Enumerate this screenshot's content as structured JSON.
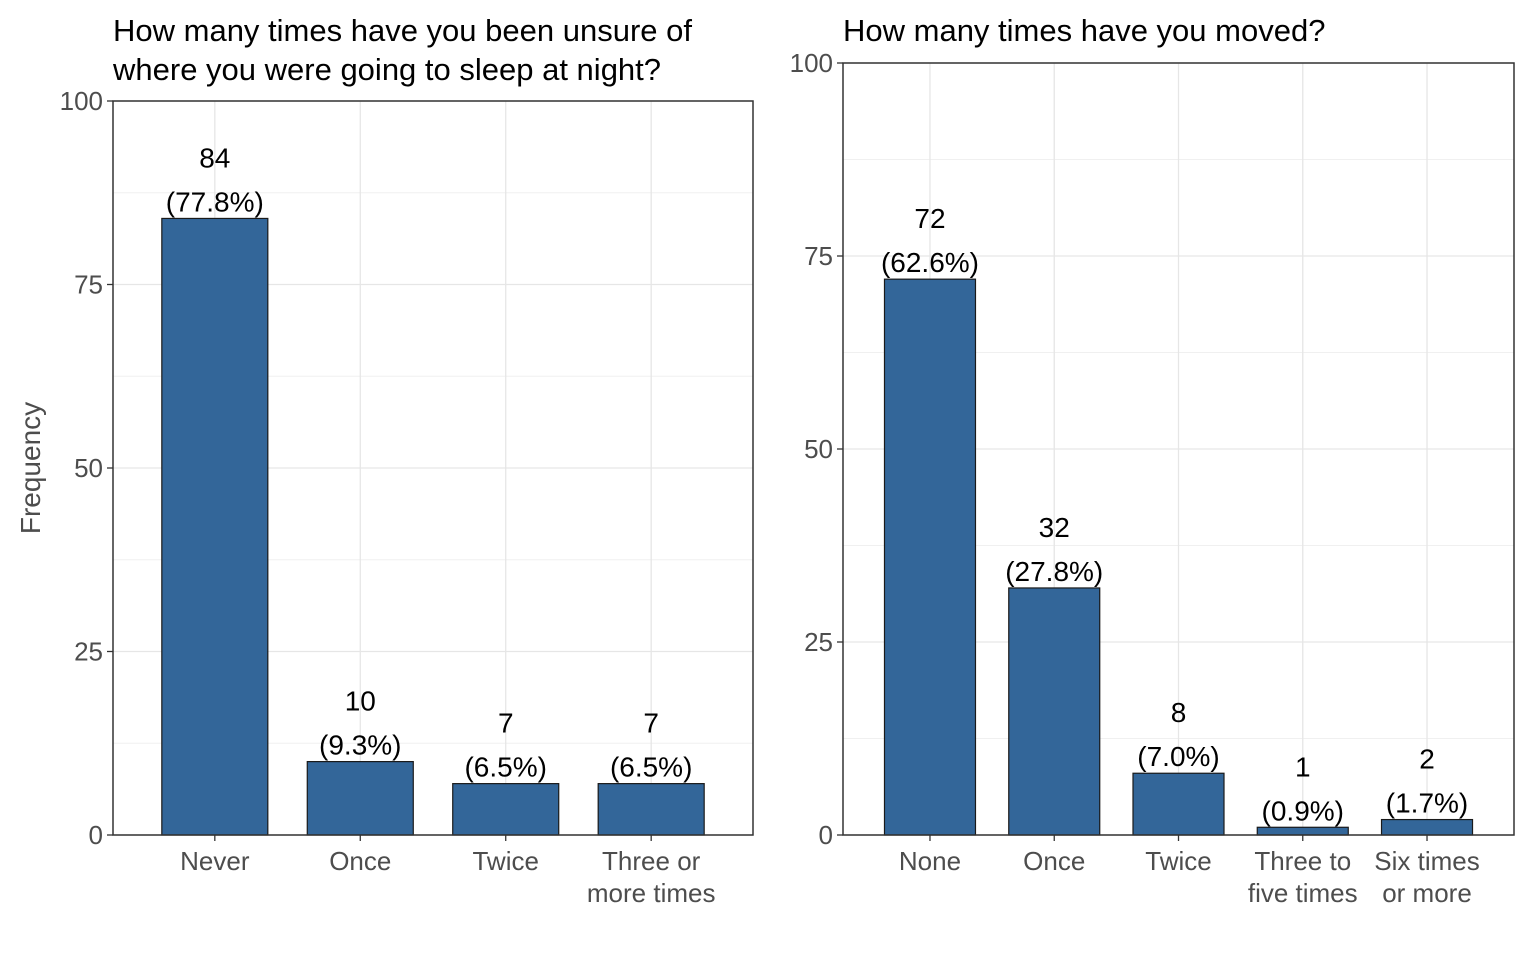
{
  "chart_data": [
    {
      "type": "bar",
      "title": "How many times have you been unsure of where you were going to sleep at night?",
      "title_lines": [
        "How many times have you been unsure of",
        "where you were going to sleep at night?"
      ],
      "ylabel": "Frequency",
      "xlabel": "",
      "ylim": [
        0,
        100
      ],
      "yticks": [
        0,
        25,
        50,
        75,
        100
      ],
      "grid": true,
      "categories": [
        "Never",
        "Once",
        "Twice",
        "Three or more times"
      ],
      "category_lines": [
        [
          "Never"
        ],
        [
          "Once"
        ],
        [
          "Twice"
        ],
        [
          "Three or",
          "more times"
        ]
      ],
      "values": [
        84,
        10,
        7,
        7
      ],
      "count_labels": [
        "84",
        "10",
        "7",
        "7"
      ],
      "percent_labels": [
        "(77.8%)",
        "(9.3%)",
        "(6.5%)",
        "(6.5%)"
      ],
      "bar_color": "#336699"
    },
    {
      "type": "bar",
      "title": "How many times have you moved?",
      "title_lines": [
        "How many times have you moved?"
      ],
      "ylabel": "",
      "xlabel": "",
      "ylim": [
        0,
        100
      ],
      "yticks": [
        0,
        25,
        50,
        75,
        100
      ],
      "grid": true,
      "categories": [
        "None",
        "Once",
        "Twice",
        "Three to five times",
        "Six times or more"
      ],
      "category_lines": [
        [
          "None"
        ],
        [
          "Once"
        ],
        [
          "Twice"
        ],
        [
          "Three to",
          "five times"
        ],
        [
          "Six times",
          "or more"
        ]
      ],
      "values": [
        72,
        32,
        8,
        1,
        2
      ],
      "count_labels": [
        "72",
        "32",
        "8",
        "1",
        "2"
      ],
      "percent_labels": [
        "(62.6%)",
        "(27.8%)",
        "(7.0%)",
        "(0.9%)",
        "(1.7%)"
      ],
      "bar_color": "#336699"
    }
  ]
}
